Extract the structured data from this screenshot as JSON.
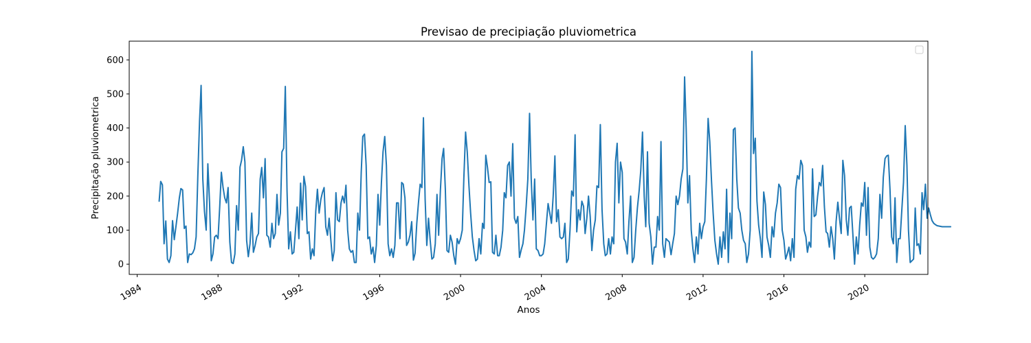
{
  "chart_data": {
    "type": "line",
    "title": "Previsao de precipiação pluviometrica",
    "xlabel": "Anos",
    "ylabel": "Precipitação pluviometrica",
    "x_range": [
      "1983-08-10",
      "2023-02-15"
    ],
    "ylim": [
      -30,
      655
    ],
    "x_ticks": [
      {
        "label": "1984",
        "date": "1984-01-01"
      },
      {
        "label": "1988",
        "date": "1988-01-01"
      },
      {
        "label": "1992",
        "date": "1992-01-01"
      },
      {
        "label": "1996",
        "date": "1996-01-01"
      },
      {
        "label": "2000",
        "date": "2000-01-01"
      },
      {
        "label": "2004",
        "date": "2004-01-01"
      },
      {
        "label": "2008",
        "date": "2008-01-01"
      },
      {
        "label": "2012",
        "date": "2012-01-01"
      },
      {
        "label": "2016",
        "date": "2016-01-01"
      },
      {
        "label": "2020",
        "date": "2020-01-01"
      }
    ],
    "y_ticks": [
      0,
      100,
      200,
      300,
      400,
      500,
      600
    ],
    "grid": false,
    "legend": {
      "placement": "top-right",
      "entries": []
    },
    "line_color": "#1f77b4",
    "series": [
      {
        "start": "1985-02",
        "frequency": "monthly",
        "values": [
          185,
          243,
          233,
          60,
          127,
          15,
          5,
          25,
          128,
          72,
          110,
          150,
          195,
          222,
          218,
          105,
          112,
          5,
          30,
          28,
          33,
          45,
          80,
          260,
          420,
          525,
          250,
          155,
          100,
          295,
          180,
          10,
          30,
          80,
          85,
          75,
          170,
          270,
          225,
          195,
          180,
          225,
          65,
          5,
          2,
          30,
          172,
          100,
          285,
          305,
          345,
          300,
          70,
          22,
          60,
          150,
          35,
          55,
          80,
          90,
          250,
          284,
          195,
          310,
          85,
          80,
          50,
          120,
          75,
          90,
          205,
          115,
          150,
          330,
          340,
          522,
          215,
          45,
          95,
          30,
          35,
          100,
          168,
          75,
          238,
          130,
          258,
          228,
          90,
          95,
          15,
          45,
          25,
          155,
          220,
          150,
          190,
          210,
          225,
          110,
          85,
          135,
          70,
          10,
          40,
          210,
          130,
          125,
          180,
          200,
          180,
          232,
          100,
          45,
          35,
          40,
          5,
          5,
          150,
          100,
          270,
          375,
          382,
          290,
          75,
          80,
          30,
          50,
          5,
          55,
          205,
          115,
          240,
          330,
          375,
          290,
          60,
          25,
          45,
          20,
          55,
          180,
          180,
          75,
          240,
          235,
          195,
          55,
          65,
          85,
          125,
          12,
          32,
          120,
          180,
          235,
          225,
          430,
          190,
          55,
          135,
          70,
          15,
          20,
          60,
          205,
          85,
          215,
          310,
          340,
          220,
          40,
          35,
          85,
          65,
          25,
          0,
          75,
          60,
          75,
          100,
          255,
          388,
          330,
          230,
          150,
          80,
          40,
          10,
          15,
          75,
          30,
          120,
          105,
          320,
          285,
          240,
          242,
          35,
          30,
          85,
          25,
          25,
          50,
          100,
          210,
          195,
          290,
          300,
          200,
          354,
          135,
          120,
          140,
          20,
          42,
          60,
          100,
          170,
          250,
          443,
          250,
          130,
          250,
          45,
          40,
          25,
          25,
          30,
          60,
          120,
          178,
          150,
          120,
          200,
          318,
          125,
          160,
          80,
          75,
          80,
          120,
          5,
          15,
          100,
          215,
          200,
          380,
          95,
          160,
          130,
          185,
          170,
          90,
          135,
          200,
          140,
          40,
          100,
          130,
          230,
          225,
          410,
          160,
          60,
          25,
          30,
          75,
          30,
          80,
          60,
          300,
          355,
          180,
          300,
          270,
          75,
          65,
          30,
          125,
          200,
          5,
          20,
          100,
          165,
          215,
          275,
          388,
          200,
          110,
          330,
          120,
          80,
          0,
          50,
          50,
          140,
          100,
          360,
          60,
          20,
          75,
          70,
          65,
          28,
          60,
          90,
          200,
          175,
          200,
          250,
          280,
          550,
          400,
          180,
          260,
          100,
          45,
          5,
          80,
          30,
          120,
          75,
          110,
          125,
          250,
          428,
          360,
          245,
          150,
          70,
          30,
          0,
          80,
          20,
          95,
          45,
          220,
          5,
          150,
          75,
          395,
          400,
          250,
          165,
          150,
          100,
          70,
          60,
          5,
          30,
          100,
          625,
          325,
          370,
          185,
          115,
          75,
          20,
          212,
          175,
          80,
          55,
          20,
          110,
          80,
          150,
          180,
          235,
          225,
          100,
          70,
          15,
          30,
          50,
          10,
          75,
          20,
          220,
          260,
          250,
          305,
          290,
          100,
          80,
          35,
          65,
          50,
          280,
          140,
          145,
          200,
          240,
          230,
          290,
          170,
          95,
          90,
          50,
          110,
          75,
          15,
          125,
          182,
          135,
          90,
          305,
          260,
          130,
          85,
          165,
          170,
          85,
          0,
          80,
          30,
          115,
          180,
          170,
          240,
          85,
          225,
          50,
          20,
          15,
          20,
          30,
          75,
          205,
          135,
          255,
          310,
          318,
          320,
          220,
          80,
          60,
          195,
          5,
          75,
          75,
          160,
          240,
          407,
          290,
          100,
          5,
          10,
          15,
          165,
          55,
          60,
          30,
          210,
          160,
          235,
          135,
          165,
          145,
          128,
          120,
          116,
          113,
          112,
          111,
          110,
          110,
          110,
          110,
          110,
          110
        ]
      }
    ]
  }
}
